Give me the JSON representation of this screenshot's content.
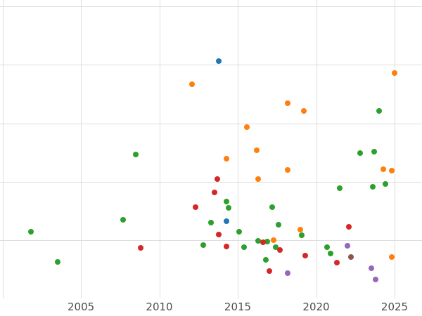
{
  "chart_data": {
    "type": "scatter",
    "title": "",
    "xlabel": "",
    "ylabel": "",
    "xlim": [
      1999.84,
      2026.75
    ],
    "ylim": [
      0,
      102.2
    ],
    "grid": true,
    "legend_position": "none",
    "x_tick_values": [
      2005,
      2010,
      2015,
      2020,
      2025
    ],
    "x_tick_labels": [
      "2005",
      "2010",
      "2015",
      "2020",
      "2025"
    ],
    "x_grid_values": [
      2000,
      2005,
      2010,
      2015,
      2020,
      2025
    ],
    "y_grid_values": [
      20,
      40,
      60,
      80,
      100
    ],
    "palette": {
      "blue": "#1f77b4",
      "orange": "#ff7f0e",
      "green": "#2ca02c",
      "red": "#d62728",
      "purple": "#9467bd",
      "brown": "#8c564b"
    },
    "series": [
      {
        "name": "green",
        "color": "#2ca02c",
        "points": [
          [
            2008.5,
            49.3
          ],
          [
            2024.0,
            64.2
          ],
          [
            2022.8,
            49.8
          ],
          [
            2023.7,
            50.2
          ],
          [
            2024.4,
            39.2
          ],
          [
            2023.6,
            38.2
          ],
          [
            2021.5,
            37.7
          ],
          [
            2014.3,
            33.2
          ],
          [
            2014.4,
            31.0
          ],
          [
            2017.2,
            31.3
          ],
          [
            2007.7,
            26.9
          ],
          [
            2001.8,
            22.8
          ],
          [
            2013.3,
            26.0
          ],
          [
            2019.1,
            21.6
          ],
          [
            2015.1,
            22.8
          ],
          [
            2017.6,
            25.2
          ],
          [
            2012.8,
            18.3
          ],
          [
            2015.4,
            17.5
          ],
          [
            2016.3,
            19.7
          ],
          [
            2016.9,
            19.5
          ],
          [
            2017.4,
            17.5
          ],
          [
            2020.7,
            17.5
          ],
          [
            2020.9,
            15.4
          ],
          [
            2003.5,
            12.5
          ],
          [
            2016.8,
            13.2
          ]
        ]
      },
      {
        "name": "orange",
        "color": "#ff7f0e",
        "points": [
          [
            2012.1,
            73.3
          ],
          [
            2025.0,
            77.2
          ],
          [
            2018.2,
            66.8
          ],
          [
            2019.2,
            64.2
          ],
          [
            2015.6,
            58.7
          ],
          [
            2016.2,
            50.7
          ],
          [
            2014.3,
            47.8
          ],
          [
            2018.2,
            44.0
          ],
          [
            2024.3,
            44.2
          ],
          [
            2024.8,
            43.8
          ],
          [
            2016.3,
            40.9
          ],
          [
            2019.0,
            23.6
          ],
          [
            2017.3,
            20.0
          ],
          [
            2024.8,
            14.2
          ]
        ]
      },
      {
        "name": "red",
        "color": "#d62728",
        "points": [
          [
            2013.7,
            40.9
          ],
          [
            2013.5,
            36.3
          ],
          [
            2012.3,
            31.3
          ],
          [
            2022.1,
            24.5
          ],
          [
            2013.8,
            21.9
          ],
          [
            2014.3,
            17.8
          ],
          [
            2016.6,
            19.2
          ],
          [
            2017.7,
            16.6
          ],
          [
            2019.3,
            14.7
          ],
          [
            2021.3,
            12.3
          ],
          [
            2008.8,
            17.3
          ],
          [
            2017.0,
            9.4
          ]
        ]
      },
      {
        "name": "blue",
        "color": "#1f77b4",
        "points": [
          [
            2013.8,
            81.3
          ],
          [
            2014.3,
            26.4
          ]
        ]
      },
      {
        "name": "purple",
        "color": "#9467bd",
        "points": [
          [
            2022.0,
            18.0
          ],
          [
            2018.2,
            8.7
          ],
          [
            2023.5,
            10.3
          ],
          [
            2023.8,
            6.5
          ]
        ]
      },
      {
        "name": "brown",
        "color": "#8c564b",
        "points": [
          [
            2022.2,
            14.2
          ]
        ]
      }
    ]
  }
}
